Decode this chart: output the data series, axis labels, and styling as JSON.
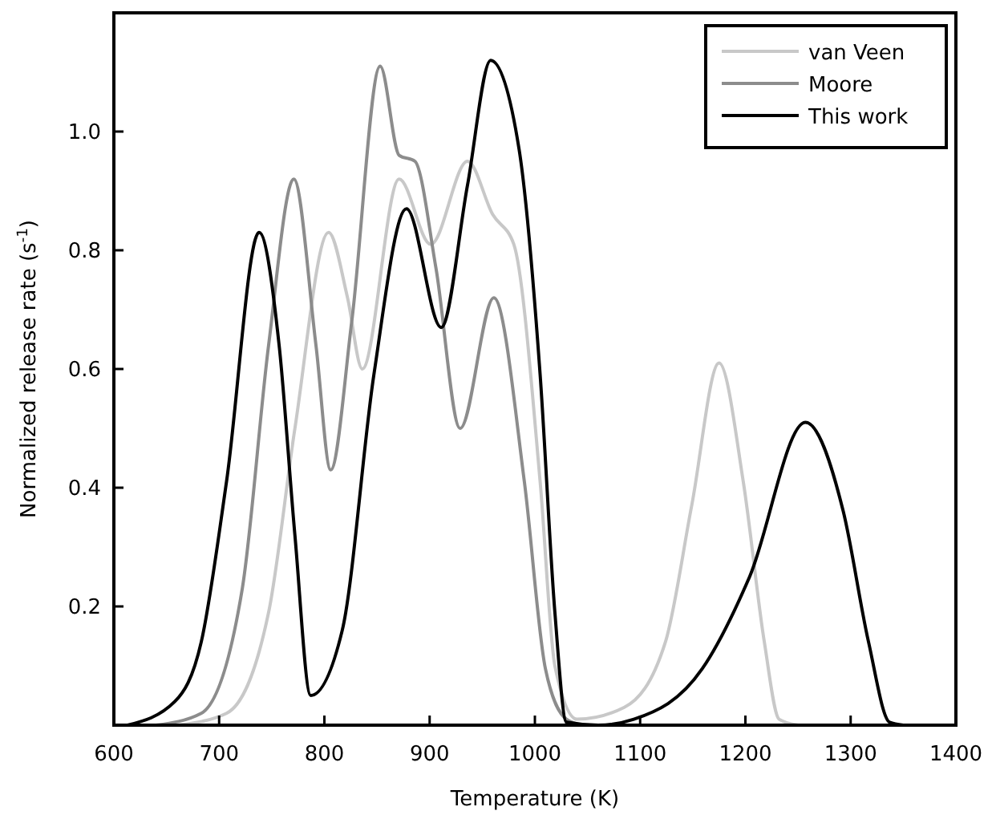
{
  "chart_data": {
    "type": "line",
    "xlabel": "Temperature (K)",
    "ylabel": "Normalized release rate (s$^{-1}$)",
    "xlim": [
      600,
      1400
    ],
    "xticks": [
      600,
      700,
      800,
      900,
      1000,
      1100,
      1200,
      1300,
      1400
    ],
    "ylim": [
      0,
      1.2
    ],
    "yticks": [
      0.2,
      0.4,
      0.6,
      0.8,
      {
        "value": 1,
        "label": "1.0"
      }
    ],
    "grid": false,
    "legend": "top right",
    "marker": "none",
    "line_style": "solid",
    "series": [
      {
        "name": "van Veen",
        "color": "#c8c8c8",
        "x": [
          660,
          707,
          747,
          772,
          804,
          822,
          836,
          871,
          901,
          936,
          960,
          980,
          1005,
          1019,
          1040,
          1085,
          1124,
          1149,
          1175,
          1198,
          1218,
          1232,
          1250
        ],
        "values": [
          0,
          0.02,
          0.19,
          0.5,
          0.83,
          0.72,
          0.6,
          0.92,
          0.81,
          0.95,
          0.86,
          0.81,
          0.41,
          0.1,
          0.01,
          0.03,
          0.14,
          0.37,
          0.61,
          0.41,
          0.14,
          0.01,
          0
        ]
      },
      {
        "name": "Moore",
        "color": "#8c8c8c",
        "x": [
          640,
          683,
          722,
          747,
          771,
          792,
          806,
          826,
          853,
          871,
          886,
          906,
          929,
          961,
          990,
          1010,
          1030,
          1045
        ],
        "values": [
          0,
          0.02,
          0.23,
          0.64,
          0.92,
          0.64,
          0.43,
          0.68,
          1.11,
          0.96,
          0.95,
          0.77,
          0.5,
          0.72,
          0.41,
          0.095,
          0.01,
          0
        ]
      },
      {
        "name": "This work",
        "color": "#000000",
        "x": [
          613,
          658,
          683,
          707,
          738,
          757,
          772,
          787,
          817,
          847,
          878,
          911,
          936,
          958,
          985,
          1005,
          1019,
          1030,
          1060,
          1094,
          1159,
          1204,
          1257,
          1293,
          1317,
          1337,
          1350
        ],
        "values": [
          0,
          0.04,
          0.14,
          0.41,
          0.83,
          0.64,
          0.32,
          0.05,
          0.16,
          0.59,
          0.87,
          0.67,
          0.91,
          1.12,
          0.97,
          0.59,
          0.19,
          0.005,
          0,
          0.01,
          0.095,
          0.25,
          0.51,
          0.36,
          0.14,
          0.005,
          0
        ]
      }
    ]
  }
}
